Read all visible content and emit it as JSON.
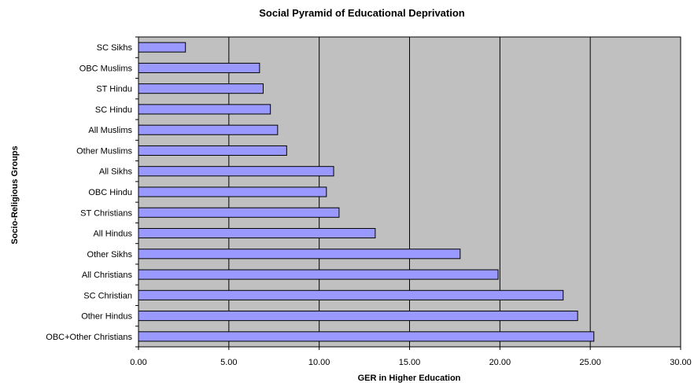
{
  "chart_data": {
    "type": "bar",
    "orientation": "horizontal",
    "title": "Social Pyramid of Educational Deprivation",
    "xlabel": "GER in Higher Education",
    "ylabel": "Socio-Religious Groups",
    "categories": [
      "SC Sikhs",
      "OBC Muslims",
      "ST Hindu",
      "SC Hindu",
      "All Muslims",
      "Other Muslims",
      "All Sikhs",
      "OBC Hindu",
      "ST Christians",
      "All Hindus",
      "Other Sikhs",
      "All Christians",
      "SC Christian",
      "Other Hindus",
      "OBC+Other Christians"
    ],
    "values": [
      2.6,
      6.7,
      6.9,
      7.3,
      7.7,
      8.2,
      10.8,
      10.4,
      11.1,
      13.1,
      17.8,
      19.9,
      23.5,
      24.3,
      25.2
    ],
    "xlim": [
      0,
      30
    ],
    "xticks": [
      0,
      5,
      10,
      15,
      20,
      25,
      30
    ],
    "xtick_labels": [
      "0.00",
      "5.00",
      "10.00",
      "15.00",
      "20.00",
      "25.00",
      "30.00"
    ],
    "grid": "vertical major gridlines",
    "legend": "none",
    "colors": {
      "plot_background": "#c0c0c0",
      "bar_fill": "#9999ff",
      "bar_stroke": "#000000",
      "gridline": "#000000"
    }
  }
}
